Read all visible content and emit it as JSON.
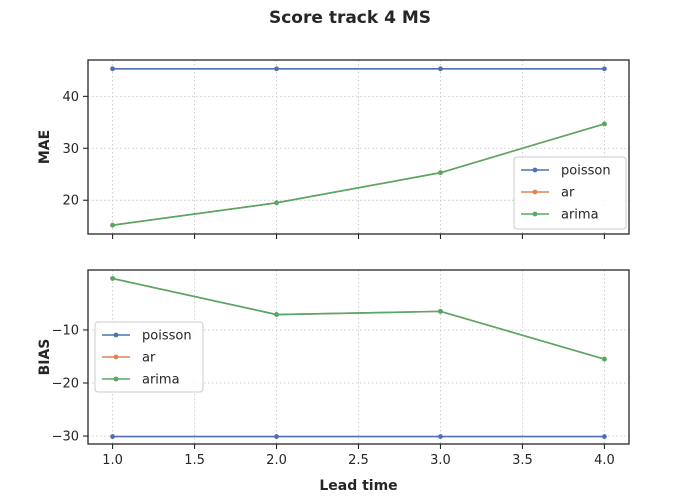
{
  "title": "Score track 4 MS",
  "chart_data": [
    {
      "type": "line",
      "ylabel": "MAE",
      "xlabel": "",
      "x": [
        1.0,
        2.0,
        3.0,
        4.0
      ],
      "xlim": [
        0.85,
        4.15
      ],
      "ylim": [
        13.5,
        47.0
      ],
      "yticks": [
        20,
        30,
        40
      ],
      "ytick_labels": [
        "20",
        "30",
        "40"
      ],
      "grid": true,
      "legend_position": "lower-right",
      "series": [
        {
          "name": "poisson",
          "color": "#4c72b0",
          "values": [
            45.3,
            45.3,
            45.3,
            45.3
          ]
        },
        {
          "name": "ar",
          "color": "#dd8452",
          "values": [
            15.2,
            19.5,
            25.3,
            34.7
          ]
        },
        {
          "name": "arima",
          "color": "#55a868",
          "values": [
            15.2,
            19.5,
            25.3,
            34.7
          ]
        }
      ]
    },
    {
      "type": "line",
      "ylabel": "BIAS",
      "xlabel": "Lead time",
      "x": [
        1.0,
        2.0,
        3.0,
        4.0
      ],
      "xlim": [
        0.85,
        4.15
      ],
      "xticks": [
        1.0,
        1.5,
        2.0,
        2.5,
        3.0,
        3.5,
        4.0
      ],
      "xtick_labels": [
        "1.0",
        "1.5",
        "2.0",
        "2.5",
        "3.0",
        "3.5",
        "4.0"
      ],
      "ylim": [
        -31.5,
        1.3
      ],
      "yticks": [
        -30,
        -20,
        -10
      ],
      "ytick_labels": [
        "−30",
        "−20",
        "−10"
      ],
      "grid": true,
      "legend_position": "center-left",
      "series": [
        {
          "name": "poisson",
          "color": "#4c72b0",
          "values": [
            -30.1,
            -30.1,
            -30.1,
            -30.1
          ]
        },
        {
          "name": "ar",
          "color": "#dd8452",
          "values": [
            -0.3,
            -7.1,
            -6.5,
            -15.5
          ]
        },
        {
          "name": "arima",
          "color": "#55a868",
          "values": [
            -0.3,
            -7.1,
            -6.5,
            -15.5
          ]
        }
      ]
    }
  ]
}
